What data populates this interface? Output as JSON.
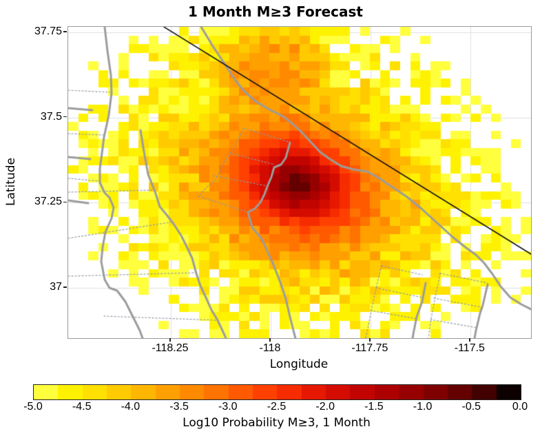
{
  "title": "1 Month M≥3 Forecast",
  "chart_data": {
    "type": "heatmap",
    "title": "1 Month M≥3 Forecast",
    "xlabel": "Longitude",
    "ylabel": "Latitude",
    "xlim": [
      -118.507,
      -117.348
    ],
    "ylim": [
      36.853,
      37.766
    ],
    "grid": {
      "cols": 46,
      "rows": 36,
      "cell_deg": 0.025
    },
    "grid_lines": {
      "show": true,
      "color": "#e0e0e0"
    },
    "x_ticks": [
      {
        "v": -118.25,
        "label": "-118.25"
      },
      {
        "v": -118.0,
        "label": "-118"
      },
      {
        "v": -117.75,
        "label": "-117.75"
      },
      {
        "v": -117.5,
        "label": "-117.5"
      }
    ],
    "y_ticks": [
      {
        "v": 37.75,
        "label": "37.75"
      },
      {
        "v": 37.5,
        "label": "37.5"
      },
      {
        "v": 37.25,
        "label": "37.25"
      },
      {
        "v": 37.0,
        "label": "37"
      }
    ],
    "colorbar": {
      "label": "Log10 Probability M≥3, 1 Month",
      "min": -5.0,
      "max": 0.0,
      "step": 0.25,
      "tick_labels": [
        "-5.0",
        "-4.5",
        "-4.0",
        "-3.5",
        "-3.0",
        "-2.5",
        "-2.0",
        "-1.5",
        "-1.0",
        "-0.5",
        "0.0"
      ],
      "colors": [
        "#ffff3d",
        "#fff200",
        "#ffe000",
        "#ffcb00",
        "#ffb600",
        "#ffa000",
        "#ff8a00",
        "#ff7300",
        "#ff5a00",
        "#ff4000",
        "#f62b00",
        "#e61800",
        "#d40c00",
        "#c20400",
        "#ad0000",
        "#970000",
        "#7f0000",
        "#650000",
        "#420000",
        "#0c0000"
      ]
    },
    "field": {
      "peak": {
        "lon": -117.932,
        "lat": 37.306,
        "log10_prob": -0.45
      },
      "secondary": {
        "lon": -118.0,
        "lat": 37.62,
        "log10_prob": -3.4,
        "falloff": 40
      },
      "white_below": -5.0,
      "model": {
        "amp": 4.75,
        "scale": 0.2,
        "shape": 1.2,
        "aniso_deg": -35,
        "major": 1.1,
        "minor": 0.9,
        "outer_start": 0.5,
        "outer_rate": 3,
        "noise": 0.45,
        "seed": 11
      }
    },
    "overlays": {
      "black_line": {
        "color": "#111111",
        "width": 1.5,
        "points": [
          [
            139,
            0
          ],
          [
            672,
            330
          ]
        ]
      },
      "gray_solid": {
        "color": "#9c9c9c",
        "width": 3,
        "lines": [
          [
            [
              193,
              0
            ],
            [
              210,
              28
            ],
            [
              228,
              55
            ],
            [
              243,
              78
            ],
            [
              256,
              94
            ],
            [
              272,
              108
            ],
            [
              292,
              120
            ],
            [
              312,
              130
            ],
            [
              326,
              141
            ],
            [
              338,
              152
            ],
            [
              352,
              167
            ],
            [
              366,
              182
            ],
            [
              380,
              192
            ],
            [
              396,
              202
            ],
            [
              414,
              207
            ],
            [
              434,
              210
            ],
            [
              452,
              220
            ],
            [
              468,
              231
            ],
            [
              492,
              247
            ],
            [
              514,
              265
            ],
            [
              536,
              285
            ],
            [
              558,
              305
            ],
            [
              578,
              321
            ],
            [
              592,
              331
            ],
            [
              604,
              343
            ],
            [
              616,
              359
            ],
            [
              628,
              377
            ],
            [
              642,
              393
            ],
            [
              658,
              403
            ],
            [
              674,
              411
            ]
          ],
          [
            [
              53,
              0
            ],
            [
              57,
              35
            ],
            [
              62,
              70
            ],
            [
              63,
              96
            ],
            [
              59,
              128
            ],
            [
              52,
              160
            ],
            [
              50,
              176
            ],
            [
              46,
              206
            ],
            [
              46,
              226
            ],
            [
              53,
              241
            ],
            [
              60,
              248
            ],
            [
              66,
              262
            ],
            [
              63,
              278
            ],
            [
              54,
              298
            ],
            [
              50,
              320
            ],
            [
              48,
              341
            ],
            [
              53,
              367
            ],
            [
              60,
              379
            ],
            [
              71,
              383
            ],
            [
              83,
              399
            ],
            [
              94,
              421
            ],
            [
              104,
              441
            ],
            [
              108,
              452
            ]
          ],
          [
            [
              105,
              150
            ],
            [
              110,
              181
            ],
            [
              116,
              214
            ],
            [
              126,
              239
            ],
            [
              133,
              261
            ],
            [
              143,
              273
            ],
            [
              153,
              286
            ],
            [
              164,
              303
            ],
            [
              172,
              319
            ],
            [
              180,
              336
            ],
            [
              186,
              358
            ],
            [
              192,
              376
            ],
            [
              200,
              393
            ],
            [
              208,
              411
            ],
            [
              217,
              426
            ],
            [
              224,
              441
            ],
            [
              229,
              452
            ]
          ],
          [
            [
              322,
              168
            ],
            [
              316,
              190
            ],
            [
              309,
              200
            ],
            [
              299,
              204
            ],
            [
              295,
              218
            ],
            [
              289,
              232
            ],
            [
              285,
              243
            ],
            [
              279,
              255
            ],
            [
              271,
              264
            ],
            [
              261,
              269
            ],
            [
              267,
              291
            ],
            [
              281,
              308
            ],
            [
              297,
              343
            ],
            [
              308,
              371
            ],
            [
              316,
              395
            ],
            [
              322,
              421
            ],
            [
              327,
              441
            ],
            [
              330,
              452
            ]
          ],
          [
            [
              519,
              372
            ],
            [
              514,
              399
            ],
            [
              506,
              421
            ],
            [
              502,
              441
            ],
            [
              500,
              452
            ]
          ],
          [
            [
              609,
              374
            ],
            [
              602,
              404
            ],
            [
              598,
              416
            ],
            [
              592,
              441
            ],
            [
              590,
              452
            ]
          ],
          [
            [
              0,
              118
            ],
            [
              35,
              121
            ]
          ],
          [
            [
              0,
              189
            ],
            [
              32,
              192
            ]
          ],
          [
            [
              0,
              252
            ],
            [
              29,
              256
            ]
          ]
        ]
      },
      "gray_dotted": {
        "color": "#8d99a4",
        "width": 1.2,
        "lines": [
          [
            [
              0,
              92
            ],
            [
              62,
              95
            ]
          ],
          [
            [
              0,
              155
            ],
            [
              52,
              157
            ]
          ],
          [
            [
              0,
              220
            ],
            [
              46,
              224
            ]
          ],
          [
            [
              0,
              240
            ],
            [
              125,
              237
            ]
          ],
          [
            [
              0,
              307
            ],
            [
              153,
              283
            ]
          ],
          [
            [
              0,
              362
            ],
            [
              186,
              357
            ]
          ],
          [
            [
              52,
              420
            ],
            [
              217,
              426
            ]
          ],
          [
            [
              255,
              147
            ],
            [
              320,
              167
            ]
          ],
          [
            [
              255,
              147
            ],
            [
              242,
              172
            ],
            [
              228,
              194
            ],
            [
              214,
              222
            ],
            [
              200,
              234
            ],
            [
              189,
              246
            ]
          ],
          [
            [
              189,
              246
            ],
            [
              261,
              269
            ]
          ],
          [
            [
              237,
              184
            ],
            [
              300,
              200
            ]
          ],
          [
            [
              210,
              216
            ],
            [
              289,
              231
            ]
          ],
          [
            [
              455,
              347
            ],
            [
              514,
              360
            ]
          ],
          [
            [
              455,
              347
            ],
            [
              447,
              380
            ],
            [
              440,
              412
            ],
            [
              434,
              443
            ],
            [
              432,
              452
            ]
          ],
          [
            [
              447,
              379
            ],
            [
              514,
              393
            ]
          ],
          [
            [
              439,
              412
            ],
            [
              507,
              424
            ]
          ],
          [
            [
              540,
              358
            ],
            [
              609,
              372
            ]
          ],
          [
            [
              540,
              358
            ],
            [
              533,
              392
            ],
            [
              527,
              423
            ],
            [
              523,
              452
            ]
          ],
          [
            [
              531,
              394
            ],
            [
              600,
              407
            ]
          ],
          [
            [
              526,
              425
            ],
            [
              594,
              437
            ]
          ]
        ]
      }
    }
  }
}
